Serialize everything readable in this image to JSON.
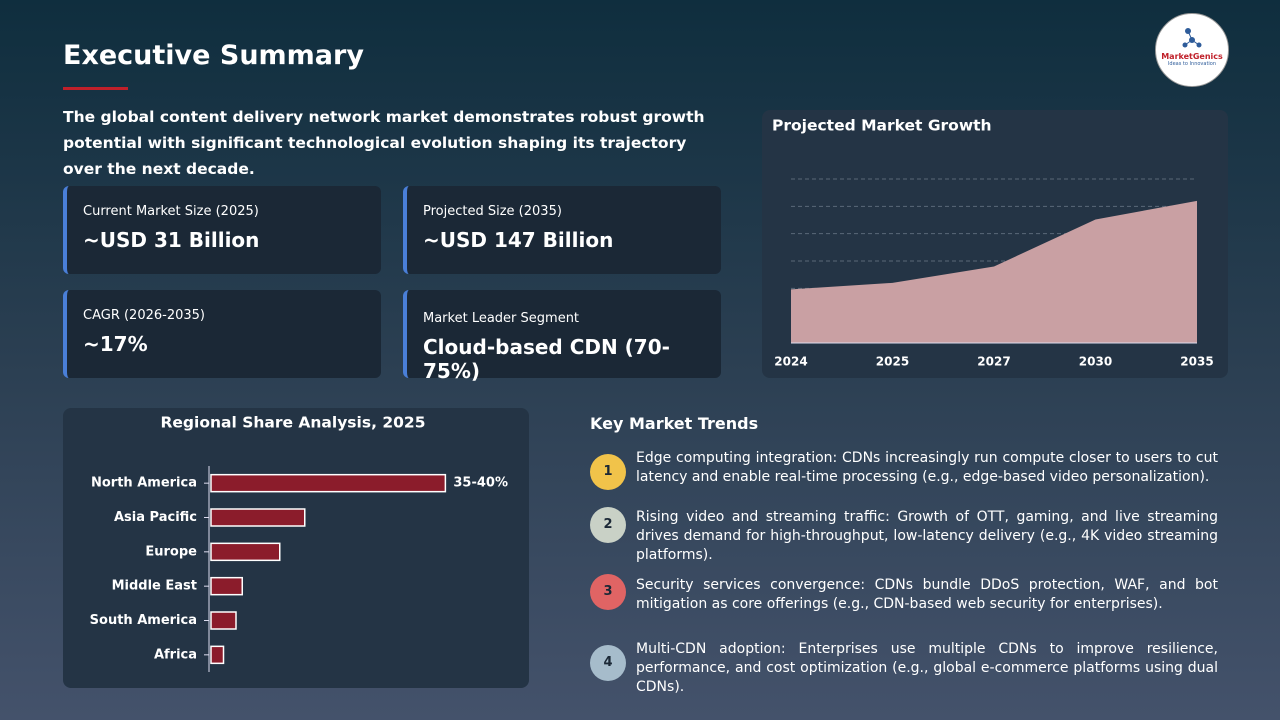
{
  "header": {
    "title": "Executive Summary",
    "subtitle": "The global content delivery network market demonstrates robust growth potential with significant technological evolution shaping its trajectory over the next decade."
  },
  "logo": {
    "name": "MarketGenics",
    "tagline": "Ideas to Innovation"
  },
  "kpis": [
    {
      "label": "Current Market Size (2025)",
      "value": "~USD 31 Billion"
    },
    {
      "label": "Projected Size (2035)",
      "value": "~USD 147 Billion"
    },
    {
      "label": "CAGR (2026-2035)",
      "value": "~17%"
    },
    {
      "label": "Market Leader Segment",
      "value": "Cloud-based CDN (70-75%)"
    }
  ],
  "trends": {
    "title": "Key Market Trends",
    "items": [
      {
        "number": "1",
        "text": "Edge computing integration: CDNs increasingly run compute closer to users to cut latency and enable real-time processing (e.g., edge-based video personalization)."
      },
      {
        "number": "2",
        "text": "Rising video and streaming traffic: Growth of OTT, gaming, and live streaming drives demand for high-throughput, low-latency delivery (e.g., 4K video streaming platforms)."
      },
      {
        "number": "3",
        "text": "Security services convergence: CDNs bundle DDoS protection, WAF, and bot mitigation as core offerings (e.g., CDN-based web security for enterprises)."
      },
      {
        "number": "4",
        "text": "Multi-CDN adoption: Enterprises use multiple CDNs to improve resilience, performance, and cost optimization (e.g., global e-commerce platforms using dual CDNs)."
      }
    ]
  },
  "chart_data": [
    {
      "type": "area",
      "title": "Projected Market Growth",
      "categories": [
        "2024",
        "2025",
        "2027",
        "2030",
        "2035"
      ],
      "values": [
        49,
        55,
        70,
        113,
        130
      ],
      "color": "#c9a0a3",
      "ylim": [
        0,
        150
      ],
      "yticks": [
        0,
        25,
        50,
        75,
        100,
        125,
        150
      ],
      "grid": true
    },
    {
      "type": "bar",
      "orientation": "horizontal",
      "title": "Regional Share Analysis, 2025",
      "categories": [
        "North America",
        "Asia Pacific",
        "Europe",
        "Middle East",
        "South America",
        "Africa"
      ],
      "values": [
        37.5,
        15,
        11,
        5,
        4,
        2
      ],
      "value_labels": [
        "35-40%",
        null,
        null,
        null,
        null,
        null
      ],
      "color": "#8b1c2b",
      "xlim": [
        0,
        40
      ]
    }
  ]
}
